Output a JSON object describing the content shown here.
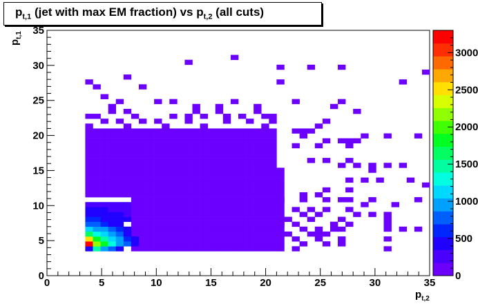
{
  "chart_data": {
    "type": "heatmap",
    "title_parts": [
      "p",
      "t,1",
      " (jet with max EM fraction) vs p",
      "t,2",
      " (all cuts)"
    ],
    "xlabel": {
      "main": "p",
      "sub": "t,2"
    },
    "ylabel": {
      "main": "p",
      "sub": "t,1"
    },
    "xlim": [
      0,
      35
    ],
    "ylim": [
      0,
      35
    ],
    "xticks": [
      "0",
      "5",
      "10",
      "15",
      "20",
      "25",
      "30",
      "35"
    ],
    "yticks": [
      "0",
      "5",
      "10",
      "15",
      "20",
      "25",
      "30",
      "35"
    ],
    "colorbar": {
      "range": [
        0,
        3300
      ],
      "ticks": [
        "0",
        "500",
        "1000",
        "1500",
        "2000",
        "2500",
        "3000"
      ]
    },
    "bin_width": 0.7,
    "bins": [
      [
        3.5,
        3.5,
        500
      ],
      [
        4.2,
        3.5,
        1500
      ],
      [
        4.9,
        3.5,
        900
      ],
      [
        5.6,
        3.5,
        700
      ],
      [
        6.3,
        3.5,
        500
      ],
      [
        3.5,
        4.2,
        3300
      ],
      [
        4.2,
        4.2,
        2100
      ],
      [
        4.9,
        4.2,
        1800
      ],
      [
        5.6,
        4.2,
        1300
      ],
      [
        6.3,
        4.2,
        1000
      ],
      [
        7.0,
        4.2,
        800
      ],
      [
        7.7,
        4.2,
        500
      ],
      [
        3.5,
        4.9,
        2600
      ],
      [
        4.2,
        4.9,
        1900
      ],
      [
        4.9,
        4.9,
        1500
      ],
      [
        5.6,
        4.9,
        1100
      ],
      [
        6.3,
        4.9,
        900
      ],
      [
        7.0,
        4.9,
        600
      ],
      [
        7.7,
        4.9,
        400
      ],
      [
        3.5,
        5.6,
        1700
      ],
      [
        4.2,
        5.6,
        1300
      ],
      [
        4.9,
        5.6,
        1100
      ],
      [
        5.6,
        5.6,
        900
      ],
      [
        6.3,
        5.6,
        700
      ],
      [
        7.0,
        5.6,
        500
      ],
      [
        3.5,
        6.3,
        1100
      ],
      [
        4.2,
        6.3,
        1000
      ],
      [
        4.9,
        6.3,
        900
      ],
      [
        5.6,
        6.3,
        700
      ],
      [
        6.3,
        6.3,
        600
      ],
      [
        7.0,
        6.3,
        500
      ],
      [
        3.5,
        7.0,
        800
      ],
      [
        4.2,
        7.0,
        700
      ],
      [
        4.9,
        7.0,
        600
      ],
      [
        5.6,
        7.0,
        500
      ],
      [
        6.3,
        7.0,
        450
      ],
      [
        3.5,
        7.7,
        600
      ],
      [
        4.2,
        7.7,
        550
      ],
      [
        4.9,
        7.7,
        500
      ],
      [
        5.6,
        7.7,
        450
      ],
      [
        6.3,
        7.7,
        400
      ],
      [
        7.0,
        7.7,
        350
      ],
      [
        3.5,
        8.4,
        450
      ],
      [
        4.2,
        8.4,
        450
      ],
      [
        4.9,
        8.4,
        400
      ],
      [
        5.6,
        8.4,
        400
      ],
      [
        6.3,
        8.4,
        350
      ],
      [
        7.0,
        8.4,
        300
      ],
      [
        3.5,
        9.1,
        350
      ],
      [
        4.2,
        9.1,
        350
      ],
      [
        4.9,
        9.1,
        350
      ],
      [
        5.6,
        9.1,
        300
      ],
      [
        6.3,
        9.1,
        300
      ],
      [
        7.0,
        9.1,
        250
      ],
      [
        3.5,
        9.8,
        250
      ],
      [
        4.2,
        9.8,
        250
      ],
      [
        4.9,
        9.8,
        250
      ],
      [
        5.6,
        9.8,
        250
      ],
      [
        6.3,
        9.8,
        250
      ],
      [
        7.0,
        9.8,
        250
      ],
      [
        16.8,
        30.8,
        5
      ],
      [
        12.6,
        30.1,
        5
      ],
      [
        21.0,
        29.4,
        5
      ],
      [
        23.8,
        29.4,
        5
      ],
      [
        26.6,
        29.4,
        5
      ],
      [
        34.3,
        28.7,
        5
      ],
      [
        7.0,
        28.0,
        5
      ],
      [
        3.5,
        27.3,
        5
      ],
      [
        21.0,
        27.3,
        5
      ],
      [
        32.2,
        27.3,
        5
      ],
      [
        4.2,
        26.6,
        5
      ],
      [
        8.4,
        26.6,
        5
      ],
      [
        4.9,
        25.2,
        5
      ],
      [
        6.3,
        24.5,
        5
      ],
      [
        9.8,
        24.5,
        5
      ],
      [
        11.2,
        24.5,
        5
      ],
      [
        22.4,
        24.5,
        5
      ],
      [
        26.6,
        24.5,
        5
      ],
      [
        16.8,
        24.5,
        5
      ],
      [
        5.6,
        23.8,
        5
      ],
      [
        13.3,
        23.8,
        5
      ],
      [
        15.4,
        23.8,
        5
      ],
      [
        18.9,
        23.8,
        5
      ],
      [
        25.9,
        23.8,
        5
      ],
      [
        5.6,
        23.1,
        5
      ],
      [
        7.0,
        23.1,
        5
      ],
      [
        13.3,
        23.1,
        5
      ],
      [
        15.4,
        23.1,
        5
      ],
      [
        18.9,
        23.1,
        5
      ],
      [
        28.0,
        23.1,
        5
      ],
      [
        3.5,
        22.4,
        5
      ],
      [
        4.2,
        22.4,
        5
      ],
      [
        7.7,
        22.4,
        5
      ],
      [
        11.2,
        22.4,
        5
      ],
      [
        12.6,
        22.4,
        5
      ],
      [
        14.0,
        22.4,
        5
      ],
      [
        16.1,
        22.4,
        5
      ],
      [
        17.5,
        22.4,
        5
      ],
      [
        19.6,
        22.4,
        5
      ],
      [
        20.3,
        22.4,
        5
      ],
      [
        4.9,
        21.7,
        5
      ],
      [
        6.3,
        21.7,
        5
      ],
      [
        8.4,
        21.7,
        5
      ],
      [
        9.8,
        21.7,
        5
      ],
      [
        12.6,
        21.7,
        5
      ],
      [
        16.1,
        21.7,
        5
      ],
      [
        18.2,
        21.7,
        5
      ],
      [
        20.3,
        21.7,
        5
      ],
      [
        25.2,
        21.7,
        5
      ],
      [
        3.5,
        21.0,
        5
      ],
      [
        7.0,
        21.0,
        5
      ],
      [
        10.5,
        21.0,
        5
      ],
      [
        14.0,
        21.0,
        5
      ],
      [
        19.6,
        21.0,
        5
      ],
      [
        24.5,
        21.0,
        5
      ],
      [
        22.4,
        20.3,
        5
      ],
      [
        23.1,
        20.3,
        5
      ],
      [
        23.8,
        20.3,
        5
      ],
      [
        30.8,
        19.6,
        5
      ],
      [
        33.6,
        19.6,
        5
      ],
      [
        28.7,
        19.6,
        5
      ],
      [
        23.1,
        19.6,
        5
      ],
      [
        26.6,
        18.9,
        5
      ],
      [
        27.3,
        18.9,
        5
      ],
      [
        28.0,
        18.9,
        5
      ],
      [
        25.2,
        18.9,
        5
      ],
      [
        22.4,
        18.2,
        5
      ],
      [
        24.5,
        18.2,
        5
      ],
      [
        27.3,
        18.2,
        5
      ],
      [
        23.8,
        16.1,
        5
      ],
      [
        25.2,
        16.1,
        5
      ],
      [
        27.3,
        16.1,
        5
      ],
      [
        29.4,
        15.4,
        5
      ],
      [
        30.8,
        15.4,
        5
      ],
      [
        32.2,
        15.4,
        5
      ],
      [
        28.0,
        15.4,
        5
      ],
      [
        26.6,
        15.4,
        5
      ],
      [
        29.4,
        14.7,
        5
      ],
      [
        27.3,
        13.3,
        5
      ],
      [
        28.7,
        13.3,
        5
      ],
      [
        30.1,
        13.3,
        5
      ],
      [
        32.9,
        13.3,
        5
      ],
      [
        34.3,
        12.6,
        5
      ],
      [
        25.2,
        11.9,
        5
      ],
      [
        27.3,
        11.9,
        5
      ],
      [
        23.1,
        11.2,
        5
      ],
      [
        24.5,
        11.2,
        5
      ],
      [
        21.0,
        10.5,
        5
      ],
      [
        23.1,
        10.5,
        5
      ],
      [
        25.2,
        10.5,
        5
      ],
      [
        26.6,
        10.5,
        5
      ],
      [
        27.3,
        10.5,
        5
      ],
      [
        29.4,
        10.5,
        5
      ],
      [
        33.6,
        10.5,
        5
      ],
      [
        31.5,
        9.8,
        5
      ],
      [
        28.7,
        9.8,
        5
      ],
      [
        22.4,
        9.1,
        5
      ],
      [
        23.8,
        9.1,
        5
      ],
      [
        25.2,
        9.1,
        5
      ],
      [
        27.3,
        9.1,
        5
      ],
      [
        23.1,
        8.4,
        5
      ],
      [
        24.5,
        8.4,
        5
      ],
      [
        28.0,
        8.4,
        5
      ],
      [
        29.4,
        8.4,
        5
      ],
      [
        30.8,
        8.4,
        5
      ],
      [
        21.7,
        7.7,
        5
      ],
      [
        23.8,
        7.7,
        5
      ],
      [
        26.6,
        7.7,
        5
      ],
      [
        30.8,
        7.7,
        5
      ],
      [
        21.0,
        7.0,
        5
      ],
      [
        22.4,
        7.0,
        5
      ],
      [
        25.9,
        7.0,
        5
      ],
      [
        27.3,
        7.0,
        5
      ],
      [
        30.8,
        7.0,
        5
      ],
      [
        23.1,
        6.3,
        5
      ],
      [
        24.5,
        6.3,
        5
      ],
      [
        25.9,
        6.3,
        5
      ],
      [
        26.6,
        6.3,
        5
      ],
      [
        30.8,
        6.3,
        5
      ],
      [
        32.2,
        6.3,
        5
      ],
      [
        33.6,
        6.3,
        5
      ],
      [
        21.7,
        5.6,
        5
      ],
      [
        23.8,
        5.6,
        5
      ],
      [
        24.5,
        5.6,
        5
      ],
      [
        25.2,
        5.6,
        5
      ],
      [
        22.4,
        4.9,
        5
      ],
      [
        24.5,
        4.9,
        5
      ],
      [
        26.6,
        4.9,
        5
      ],
      [
        30.8,
        4.9,
        5
      ],
      [
        23.1,
        4.2,
        5
      ],
      [
        25.2,
        4.2,
        5
      ],
      [
        26.6,
        4.2,
        5
      ],
      [
        30.8,
        3.5,
        5
      ],
      [
        22.4,
        3.5,
        5
      ]
    ]
  }
}
